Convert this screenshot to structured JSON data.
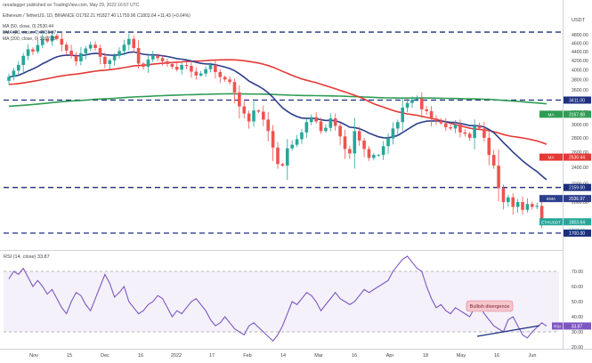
{
  "header": {
    "publish_line": "ranadagger published on TradingView.com, May 29, 2022 16:57 UTC",
    "symbol_line": "Ethereum / TetherUS, 1D, BINANCE  O1792.21  H1827.40  L1759.96  C1803.64  +11.43 (+0.64%)",
    "indicator_1": "MA (50, close, 0)  2530.44",
    "indicator_2": "EMA (20, close, 0)  2036.97",
    "indicator_3": "MA (200, close, 0)  3167.88",
    "currency": "USDT"
  },
  "colors": {
    "up_candle": "#26a69a",
    "down_candle": "#ef5350",
    "ema20": "#2c3e8c",
    "ma50": "#e53935",
    "ma200": "#2e9d54",
    "rsi": "#7e57c2",
    "support_line": "#1c2f80",
    "annotation_box": "#f5c6cc"
  },
  "chart_data": [
    {
      "type": "candlestick",
      "title": "Ethereum / TetherUS, 1D, BINANCE",
      "ylabel": "USDT",
      "ylim": [
        1600,
        5200
      ],
      "x_ticks": [
        "Nov",
        "15",
        "Dec",
        "16",
        "2022",
        "17",
        "Feb",
        "14",
        "Mar",
        "16",
        "Apr",
        "18",
        "May",
        "16",
        "Jun"
      ],
      "y_ticks": [
        "4800.00",
        "4600.00",
        "4400.00",
        "4200.00",
        "4000.00",
        "3800.00",
        "3600.00",
        "3200.00",
        "3000.00",
        "2800.00",
        "2600.00",
        "2400.00",
        "2200.00",
        "2000.00",
        "1700.00"
      ],
      "closes": [
        3850,
        3980,
        4100,
        4300,
        4450,
        4400,
        4550,
        4700,
        4640,
        4780,
        4700,
        4560,
        4420,
        4300,
        4180,
        4360,
        4470,
        4560,
        4480,
        4280,
        4120,
        4200,
        4300,
        4410,
        4560,
        4700,
        4480,
        4130,
        4060,
        4220,
        4300,
        4250,
        4180,
        4120,
        4060,
        4000,
        4100,
        4080,
        3960,
        3880,
        3920,
        4010,
        4100,
        3950,
        3850,
        3800,
        3750,
        3550,
        3300,
        3180,
        3050,
        3230,
        3210,
        3080,
        2900,
        2660,
        2440,
        2420,
        2650,
        2700,
        2780,
        2880,
        3040,
        3120,
        3050,
        2900,
        2950,
        3100,
        2980,
        2820,
        2640,
        2580,
        2900,
        2760,
        2640,
        2520,
        2560,
        2560,
        2680,
        2790,
        2940,
        3040,
        3280,
        3360,
        3420,
        3440,
        3250,
        3220,
        3100,
        3060,
        3020,
        2960,
        2940,
        3000,
        2880,
        2860,
        2800,
        2980,
        2940,
        2800,
        2560,
        2420,
        2150,
        2000,
        2050,
        1950,
        2000,
        1920,
        1980,
        1950,
        1960,
        1800,
        1803
      ],
      "levels": [
        {
          "value": 4870,
          "label": ""
        },
        {
          "value": 3411,
          "label": "3411.00"
        },
        {
          "value": 2159,
          "label": "2159.00"
        },
        {
          "value": 1700,
          "label": "1700.00"
        }
      ],
      "series": [
        {
          "name": "MA 50",
          "value_label": "2530.44"
        },
        {
          "name": "EMA 20",
          "value_label": "2036.97"
        },
        {
          "name": "MA 200",
          "value_label": "3167.88"
        }
      ],
      "price_tags": [
        {
          "label": "MA",
          "value": "3167.88",
          "price": 3167.88,
          "color": "#2e9d54"
        },
        {
          "label": "MA",
          "value": "2530.44",
          "price": 2530.44,
          "color": "#e53935"
        },
        {
          "label": "EMA",
          "value": "2036.97",
          "price": 2036.97,
          "color": "#2c3e8c"
        },
        {
          "label": "ETHUSDT",
          "value": "1803.64",
          "price": 1803.64,
          "color": "#26a69a"
        }
      ],
      "countdown": "07:03:13"
    },
    {
      "type": "line",
      "title": "RSI (14, close)  33.87",
      "ylim": [
        20,
        80
      ],
      "y_ticks": [
        "70.00",
        "60.00",
        "50.00",
        "40.00",
        "30.00",
        "20.00"
      ],
      "reference_lines": [
        70,
        30
      ],
      "values": [
        65,
        70,
        68,
        72,
        66,
        60,
        64,
        60,
        55,
        58,
        52,
        46,
        42,
        50,
        56,
        54,
        48,
        44,
        52,
        60,
        68,
        62,
        53,
        56,
        60,
        50,
        46,
        42,
        44,
        48,
        50,
        54,
        52,
        46,
        40,
        44,
        42,
        46,
        50,
        52,
        48,
        44,
        38,
        34,
        36,
        40,
        36,
        32,
        30,
        28,
        34,
        36,
        33,
        30,
        27,
        24,
        28,
        34,
        42,
        50,
        48,
        52,
        56,
        54,
        50,
        44,
        48,
        52,
        56,
        52,
        50,
        48,
        50,
        54,
        58,
        56,
        58,
        60,
        62,
        64,
        70,
        74,
        78,
        80,
        76,
        72,
        70,
        60,
        52,
        46,
        48,
        44,
        42,
        46,
        44,
        42,
        40,
        46,
        48,
        42,
        38,
        34,
        32,
        30,
        38,
        40,
        34,
        28,
        26,
        30,
        33,
        36,
        33.87
      ],
      "annotation": "Bullish divergence",
      "current_label": "RSI",
      "current_value": "33.87"
    }
  ]
}
